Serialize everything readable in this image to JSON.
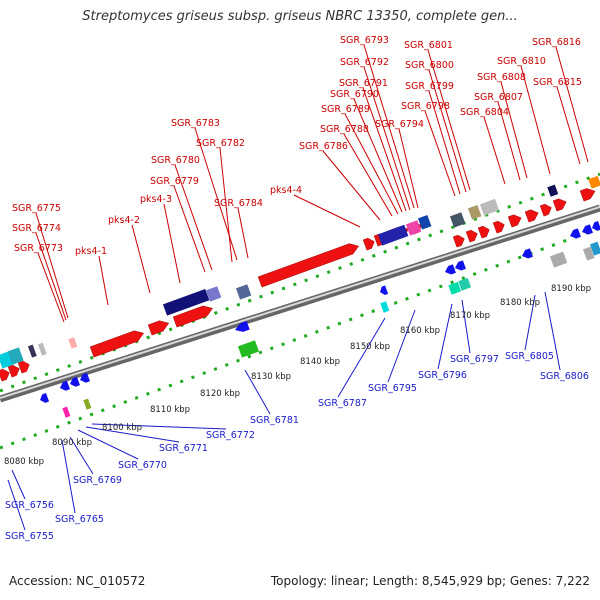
{
  "title": "Streptomyces griseus subsp. griseus NBRC 13350, complete gen...",
  "accession": "Accession: NC_010572",
  "stats": "Topology: linear; Length: 8,545,929 bp; Genes: 7,222",
  "colors": {
    "forward_gene": "#ee1111",
    "reverse_gene": "#1111ee",
    "forward_label": "#cc0000",
    "reverse_label": "#1a1acc",
    "backbone": "#8a8a8a",
    "tick": "#22aa22"
  },
  "scale_labels": [
    "8080 kbp",
    "8090 kbp",
    "8100 kbp",
    "8110 kbp",
    "8120 kbp",
    "8130 kbp",
    "8140 kbp",
    "8150 kbp",
    "8160 kbp",
    "8170 kbp",
    "8180 kbp",
    "8190 kbp"
  ],
  "top_labels": [
    "SGR_6775",
    "SGR_6774",
    "SGR_6773",
    "pks4-1",
    "pks4-2",
    "pks4-3",
    "SGR_6779",
    "SGR_6780",
    "SGR_6782",
    "SGR_6783",
    "SGR_6784",
    "pks4-4",
    "SGR_6786",
    "SGR_6788",
    "SGR_6789",
    "SGR_6790",
    "SGR_6791",
    "SGR_6792",
    "SGR_6793",
    "SGR_6794",
    "SGR_6798",
    "SGR_6799",
    "SGR_6800",
    "SGR_6801",
    "SGR_6804",
    "SGR_6807",
    "SGR_6808",
    "SGR_6810",
    "SGR_6815",
    "SGR_6816"
  ],
  "bottom_labels": [
    "SGR_6756",
    "SGR_6755",
    "SGR_6765",
    "SGR_6769",
    "SGR_6770",
    "SGR_6771",
    "SGR_6772",
    "SGR_6781",
    "SGR_6787",
    "SGR_6795",
    "SGR_6796",
    "SGR_6797",
    "SGR_6805",
    "SGR_6806"
  ]
}
